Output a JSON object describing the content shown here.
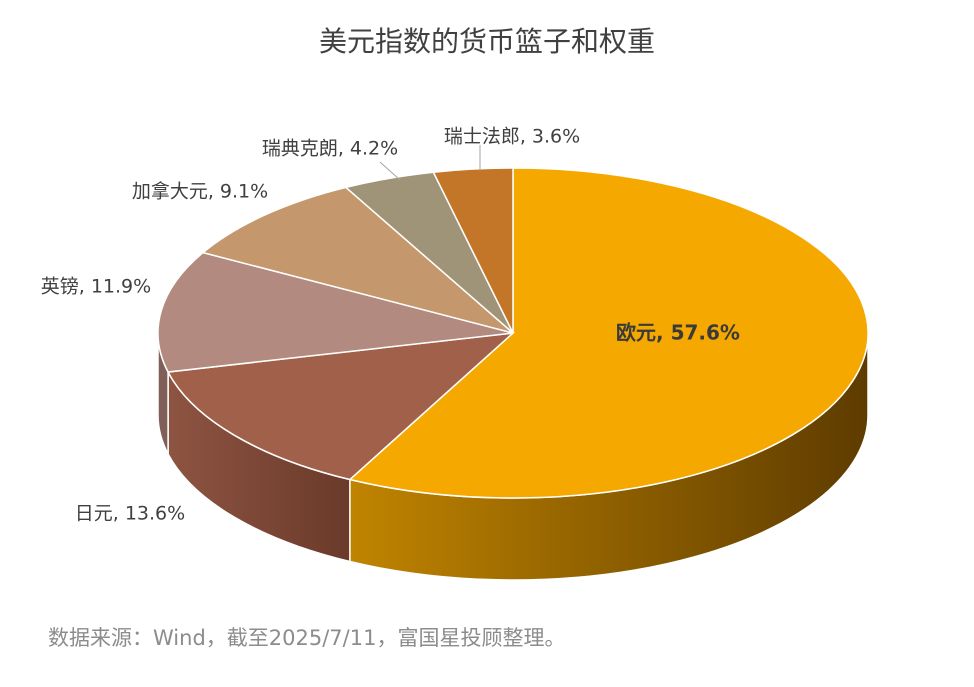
{
  "chart_data": {
    "type": "pie",
    "title": "美元指数的货币篮子和权重",
    "slices": [
      {
        "name": "欧元",
        "value": 57.6,
        "label": "欧元, 57.6%",
        "color": "#F5A800",
        "side": "#7A4E00"
      },
      {
        "name": "日元",
        "value": 13.6,
        "label": "日元, 13.6%",
        "color": "#A0604A",
        "side": "#6E3E2E"
      },
      {
        "name": "英镑",
        "value": 11.9,
        "label": "英镑, 11.9%",
        "color": "#B38A80",
        "side": "#7F5F58"
      },
      {
        "name": "加拿大元",
        "value": 9.1,
        "label": "加拿大元, 9.1%",
        "color": "#C4986C",
        "side": "#8A6A48"
      },
      {
        "name": "瑞典克朗",
        "value": 4.2,
        "label": "瑞典克朗, 4.2%",
        "color": "#A09478",
        "side": "#6E6550"
      },
      {
        "name": "瑞士法郎",
        "value": 3.6,
        "label": "瑞士法郎, 3.6%",
        "color": "#C47628",
        "side": "#8A5018"
      }
    ]
  },
  "source": "数据来源：Wind，截至2025/7/11，富国星投顾整理。"
}
